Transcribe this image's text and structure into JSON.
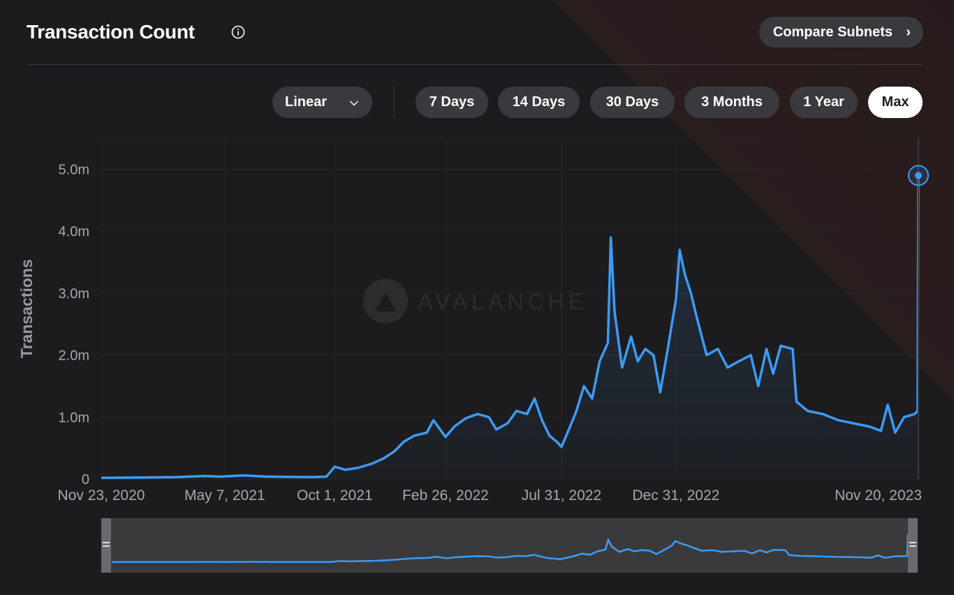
{
  "header": {
    "title": "Transaction Count",
    "compare_label": "Compare Subnets"
  },
  "controls": {
    "scale_label": "Linear",
    "ranges": [
      "7 Days",
      "14 Days",
      "30 Days",
      "3 Months",
      "1 Year",
      "Max"
    ],
    "active_range": "Max"
  },
  "colors": {
    "line": "#3d9bf5",
    "background": "#1c1c1e",
    "pill": "#3a3a3e"
  },
  "watermark": "AVALANCHE",
  "chart_data": {
    "type": "line",
    "title": "Transaction Count",
    "ylabel": "Transactions",
    "xlabel": "",
    "ylim": [
      0,
      5500000
    ],
    "yticks": [
      0,
      1000000,
      2000000,
      3000000,
      4000000,
      5000000
    ],
    "ytick_labels": [
      "0",
      "1.0m",
      "2.0m",
      "3.0m",
      "4.0m",
      "5.0m"
    ],
    "xticks": [
      "2020-11-23",
      "2021-05-07",
      "2021-10-01",
      "2022-02-26",
      "2022-07-31",
      "2022-12-31",
      "2023-11-20"
    ],
    "xtick_labels": [
      "Nov 23, 2020",
      "May 7, 2021",
      "Oct 1, 2021",
      "Feb 26, 2022",
      "Jul 31, 2022",
      "Dec 31, 2022",
      "Nov 20, 2023"
    ],
    "grid": true,
    "series": [
      {
        "points": [
          [
            "2020-11-23",
            20000
          ],
          [
            "2021-01-15",
            25000
          ],
          [
            "2021-03-01",
            30000
          ],
          [
            "2021-04-10",
            50000
          ],
          [
            "2021-05-01",
            40000
          ],
          [
            "2021-06-01",
            60000
          ],
          [
            "2021-07-01",
            40000
          ],
          [
            "2021-08-01",
            35000
          ],
          [
            "2021-09-01",
            30000
          ],
          [
            "2021-09-20",
            40000
          ],
          [
            "2021-10-01",
            200000
          ],
          [
            "2021-10-15",
            150000
          ],
          [
            "2021-11-01",
            180000
          ],
          [
            "2021-11-20",
            250000
          ],
          [
            "2021-12-05",
            330000
          ],
          [
            "2021-12-20",
            450000
          ],
          [
            "2022-01-01",
            600000
          ],
          [
            "2022-01-15",
            700000
          ],
          [
            "2022-02-01",
            750000
          ],
          [
            "2022-02-10",
            950000
          ],
          [
            "2022-02-26",
            680000
          ],
          [
            "2022-03-10",
            850000
          ],
          [
            "2022-03-25",
            980000
          ],
          [
            "2022-04-10",
            1050000
          ],
          [
            "2022-04-25",
            1000000
          ],
          [
            "2022-05-05",
            800000
          ],
          [
            "2022-05-20",
            900000
          ],
          [
            "2022-06-01",
            1100000
          ],
          [
            "2022-06-15",
            1050000
          ],
          [
            "2022-06-25",
            1300000
          ],
          [
            "2022-07-05",
            950000
          ],
          [
            "2022-07-15",
            700000
          ],
          [
            "2022-07-25",
            600000
          ],
          [
            "2022-07-31",
            520000
          ],
          [
            "2022-08-10",
            800000
          ],
          [
            "2022-08-20",
            1100000
          ],
          [
            "2022-08-30",
            1500000
          ],
          [
            "2022-09-10",
            1300000
          ],
          [
            "2022-09-20",
            1900000
          ],
          [
            "2022-10-01",
            2200000
          ],
          [
            "2022-10-05",
            3900000
          ],
          [
            "2022-10-10",
            2700000
          ],
          [
            "2022-10-20",
            1800000
          ],
          [
            "2022-11-01",
            2300000
          ],
          [
            "2022-11-10",
            1900000
          ],
          [
            "2022-11-20",
            2100000
          ],
          [
            "2022-12-01",
            2000000
          ],
          [
            "2022-12-10",
            1400000
          ],
          [
            "2022-12-20",
            2100000
          ],
          [
            "2022-12-31",
            2900000
          ],
          [
            "2023-01-05",
            3700000
          ],
          [
            "2023-01-12",
            3300000
          ],
          [
            "2023-01-20",
            3000000
          ],
          [
            "2023-01-28",
            2600000
          ],
          [
            "2023-02-10",
            2000000
          ],
          [
            "2023-02-25",
            2100000
          ],
          [
            "2023-03-10",
            1800000
          ],
          [
            "2023-03-25",
            1900000
          ],
          [
            "2023-04-10",
            2000000
          ],
          [
            "2023-04-20",
            1500000
          ],
          [
            "2023-05-01",
            2100000
          ],
          [
            "2023-05-10",
            1700000
          ],
          [
            "2023-05-20",
            2150000
          ],
          [
            "2023-06-05",
            2100000
          ],
          [
            "2023-06-10",
            1250000
          ],
          [
            "2023-06-25",
            1100000
          ],
          [
            "2023-07-15",
            1050000
          ],
          [
            "2023-08-05",
            950000
          ],
          [
            "2023-08-25",
            900000
          ],
          [
            "2023-09-15",
            850000
          ],
          [
            "2023-10-01",
            780000
          ],
          [
            "2023-10-10",
            1200000
          ],
          [
            "2023-10-20",
            750000
          ],
          [
            "2023-11-01",
            1000000
          ],
          [
            "2023-11-15",
            1050000
          ],
          [
            "2023-11-19",
            1100000
          ],
          [
            "2023-11-20",
            4900000
          ]
        ]
      }
    ]
  }
}
